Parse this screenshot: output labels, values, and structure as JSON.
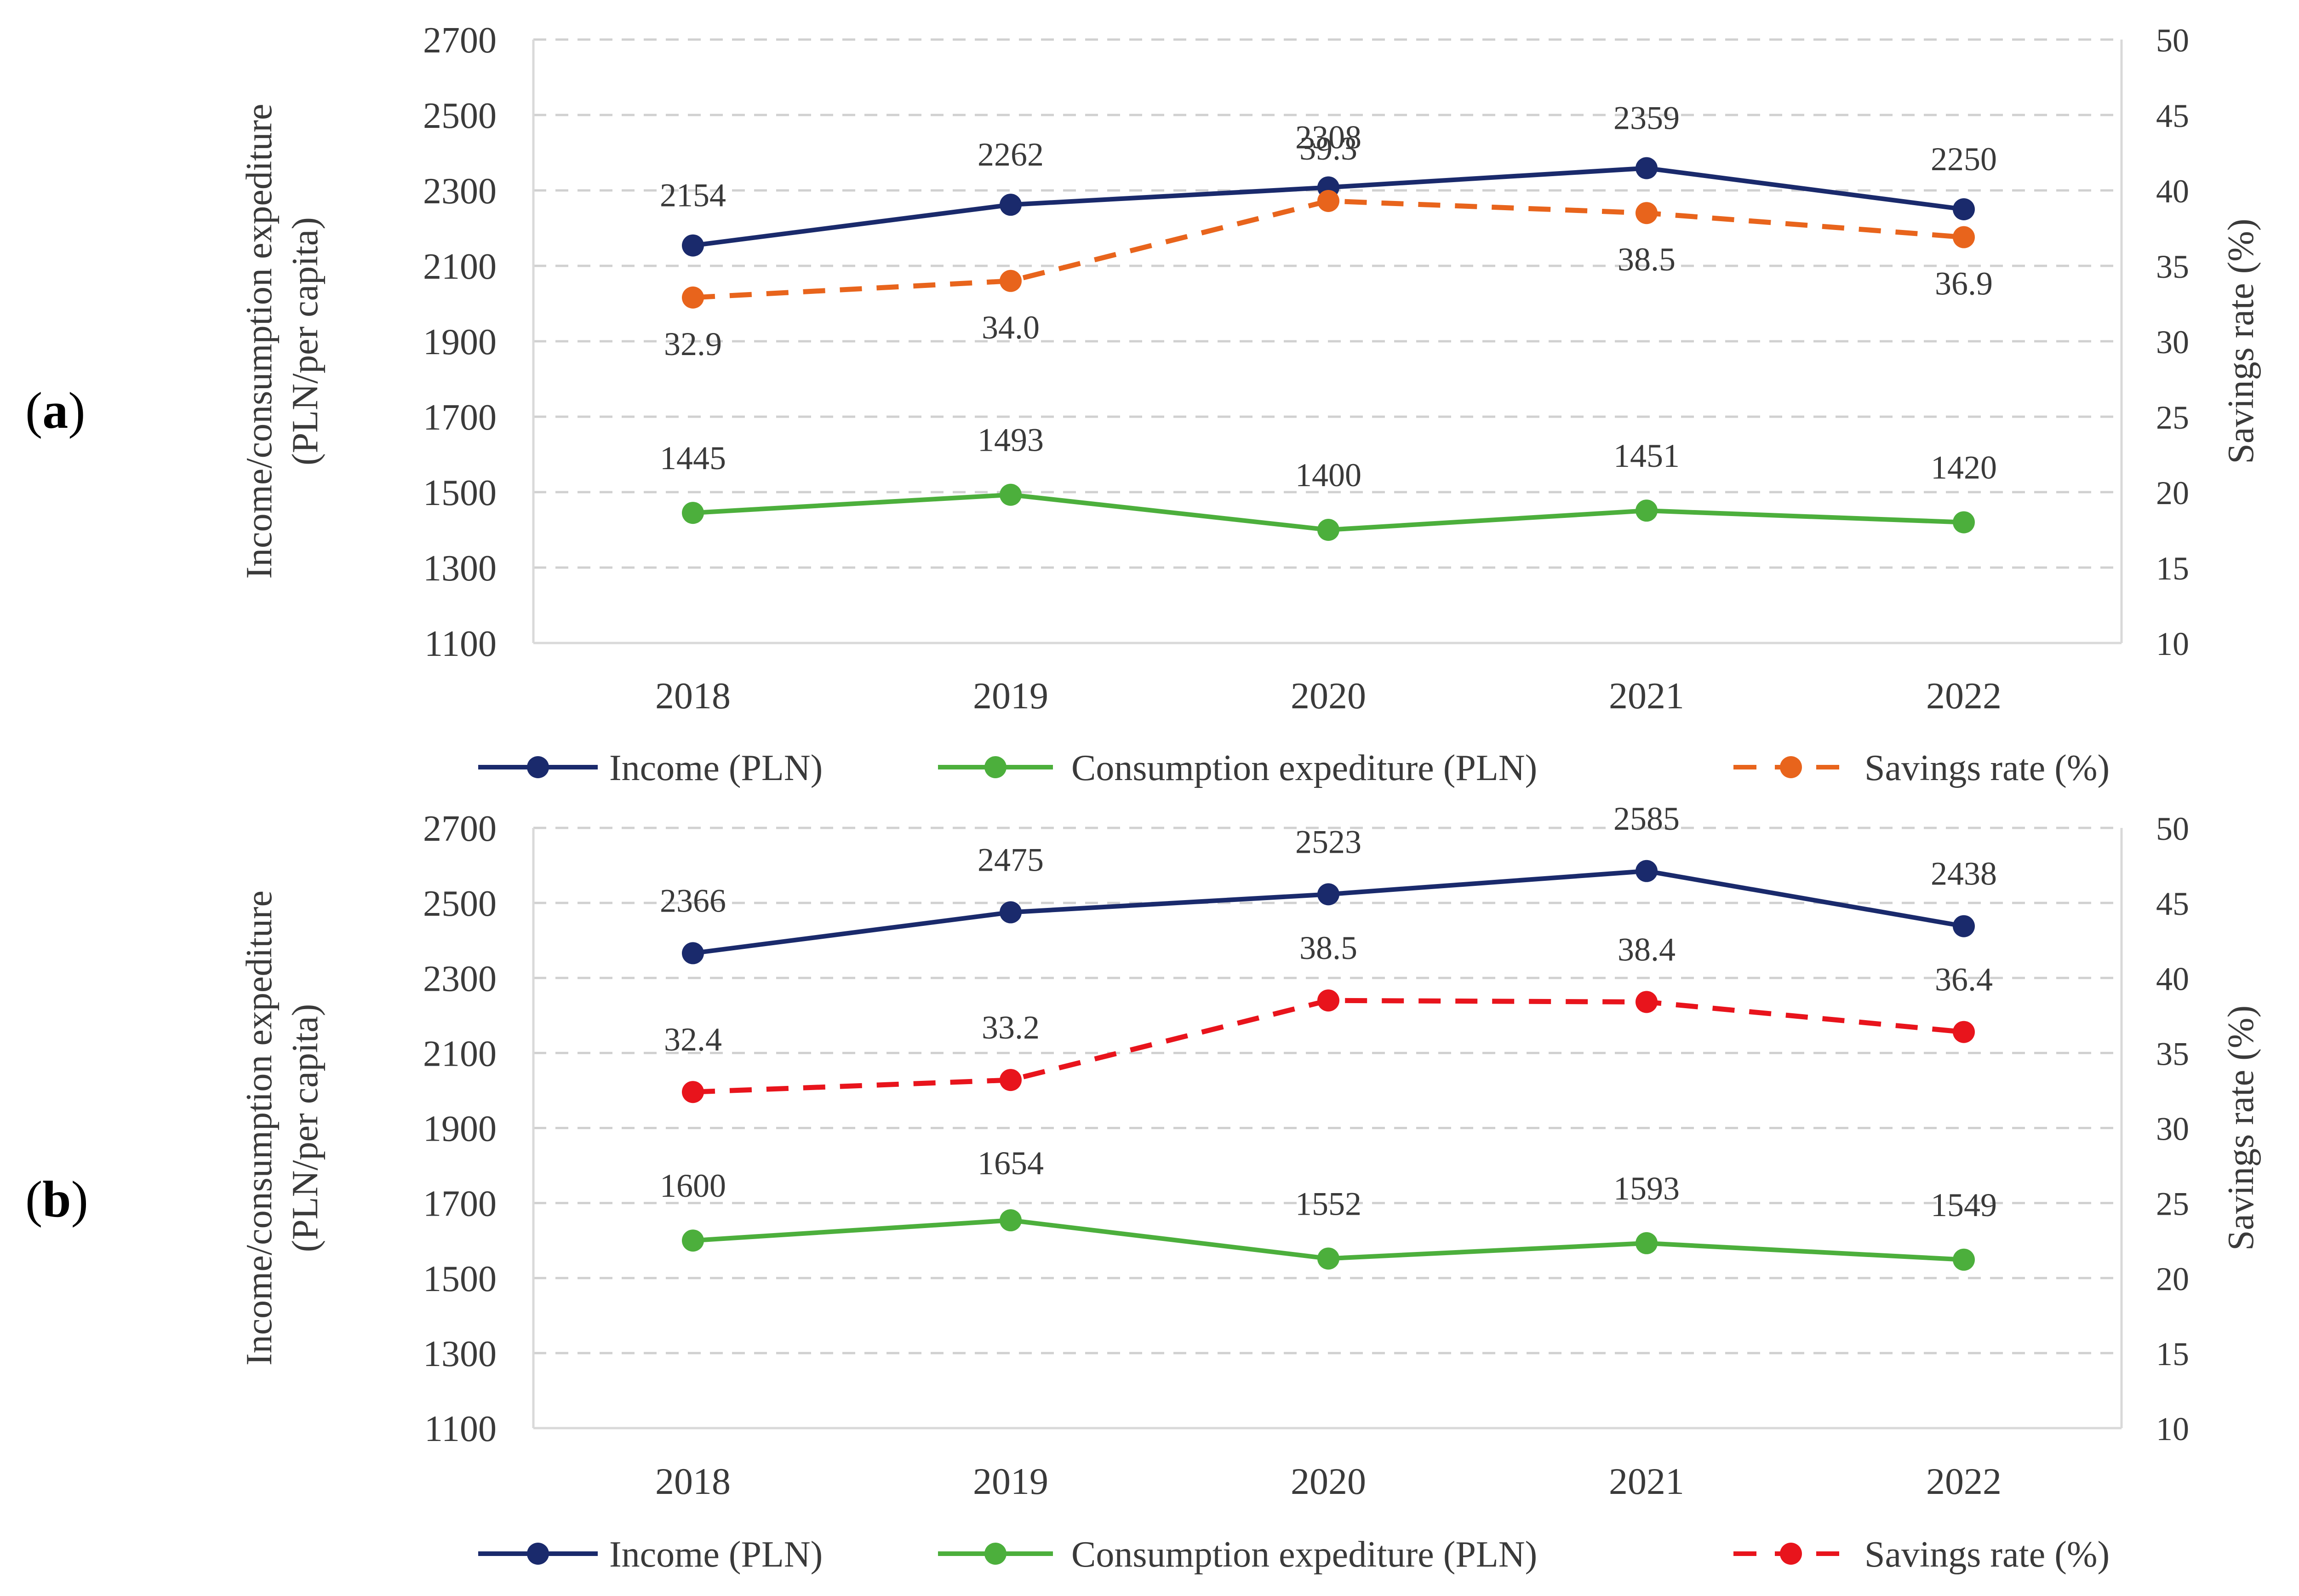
{
  "colors": {
    "income": "#1a2a6c",
    "consumption": "#4caf3c",
    "savings_a": "#e8641c",
    "savings_b": "#e8141c",
    "grid": "#d0d0d0",
    "axis": "#d9d9d9",
    "text": "#3a3a3a"
  },
  "chart_data": [
    {
      "type": "line",
      "panel_label": "a",
      "categories": [
        "2018",
        "2019",
        "2020",
        "2021",
        "2022"
      ],
      "ylabel_line1": "Income/consumption expediture",
      "ylabel_line2": "(PLN/per capita)",
      "y2label": "Savings rate (%)",
      "ylim": [
        1100,
        2700
      ],
      "y_ticks": [
        "1100",
        "1300",
        "1500",
        "1700",
        "1900",
        "2100",
        "2300",
        "2500",
        "2700"
      ],
      "y2lim": [
        10,
        50
      ],
      "y2_ticks": [
        "10",
        "15",
        "20",
        "25",
        "30",
        "35",
        "40",
        "45",
        "50"
      ],
      "series": [
        {
          "name": "Income (PLN)",
          "axis": "left",
          "dashed": false,
          "values": [
            2154,
            2262,
            2308,
            2359,
            2250
          ],
          "labels": [
            "2154",
            "2262",
            "2308",
            "2359",
            "2250"
          ]
        },
        {
          "name": "Consumption expediture (PLN)",
          "axis": "left",
          "dashed": false,
          "values": [
            1445,
            1493,
            1400,
            1451,
            1420
          ],
          "labels": [
            "1445",
            "1493",
            "1400",
            "1451",
            "1420"
          ]
        },
        {
          "name": "Savings rate (%)",
          "axis": "right",
          "dashed": true,
          "values": [
            32.9,
            34.0,
            39.3,
            38.5,
            36.9
          ],
          "labels": [
            "32.9",
            "34.0",
            "39.3",
            "38.5",
            "36.9"
          ]
        }
      ]
    },
    {
      "type": "line",
      "panel_label": "b",
      "categories": [
        "2018",
        "2019",
        "2020",
        "2021",
        "2022"
      ],
      "ylabel_line1": "Income/consumption expediture",
      "ylabel_line2": "(PLN/per capita)",
      "y2label": "Savings rate (%)",
      "ylim": [
        1100,
        2700
      ],
      "y_ticks": [
        "1100",
        "1300",
        "1500",
        "1700",
        "1900",
        "2100",
        "2300",
        "2500",
        "2700"
      ],
      "y2lim": [
        10,
        50
      ],
      "y2_ticks": [
        "10",
        "15",
        "20",
        "25",
        "30",
        "35",
        "40",
        "45",
        "50"
      ],
      "series": [
        {
          "name": "Income (PLN)",
          "axis": "left",
          "dashed": false,
          "values": [
            2366,
            2475,
            2523,
            2585,
            2438
          ],
          "labels": [
            "2366",
            "2475",
            "2523",
            "2585",
            "2438"
          ]
        },
        {
          "name": "Consumption expediture (PLN)",
          "axis": "left",
          "dashed": false,
          "values": [
            1600,
            1654,
            1552,
            1593,
            1549
          ],
          "labels": [
            "1600",
            "1654",
            "1552",
            "1593",
            "1549"
          ]
        },
        {
          "name": "Savings rate (%)",
          "axis": "right",
          "dashed": true,
          "values": [
            32.4,
            33.2,
            38.5,
            38.4,
            36.4
          ],
          "labels": [
            "32.4",
            "33.2",
            "38.5",
            "38.4",
            "36.4"
          ]
        }
      ]
    }
  ]
}
